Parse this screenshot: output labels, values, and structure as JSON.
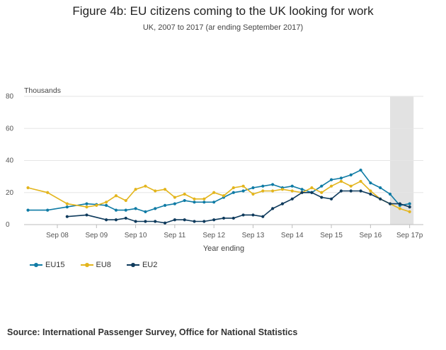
{
  "header": {
    "title": "Figure 4b: EU citizens coming to the UK looking for work",
    "subtitle": "UK, 2007 to 2017 (ar ending September 2017)"
  },
  "footer": {
    "source": "Source: International Passenger Survey, Office for National Statistics"
  },
  "legend": {
    "items": [
      {
        "label": "EU15",
        "color": "#0f7ba5"
      },
      {
        "label": "EU8",
        "color": "#e3b51d"
      },
      {
        "label": "EU2",
        "color": "#0e3a5c"
      }
    ]
  },
  "chart_data": {
    "type": "line",
    "title": "Figure 4b: EU citizens coming to the UK looking for work",
    "subtitle": "UK, 2007 to 2017 (ar ending September 2017)",
    "xlabel": "Year ending",
    "ylabel": "Thousands",
    "ylim": [
      0,
      80
    ],
    "yticks": [
      0,
      20,
      40,
      60,
      80
    ],
    "xlim": [
      2007.15,
      2017.35
    ],
    "xticks": [
      {
        "value": 2008.0,
        "label": "Sep 08"
      },
      {
        "value": 2009.0,
        "label": "Sep 09"
      },
      {
        "value": 2010.0,
        "label": "Sep 10"
      },
      {
        "value": 2011.0,
        "label": "Sep 11"
      },
      {
        "value": 2012.0,
        "label": "Sep 12"
      },
      {
        "value": 2013.0,
        "label": "Sep 13"
      },
      {
        "value": 2014.0,
        "label": "Sep 14"
      },
      {
        "value": 2015.0,
        "label": "Sep 15"
      },
      {
        "value": 2016.0,
        "label": "Sep 16"
      },
      {
        "value": 2017.0,
        "label": "Sep 17p"
      }
    ],
    "grid": true,
    "legend_position": "bottom-left",
    "shaded_region": {
      "from": 2016.5,
      "to": 2017.1,
      "color": "#e2e2e2"
    },
    "series": [
      {
        "name": "EU15",
        "color": "#0f7ba5",
        "x": [
          2007.25,
          2007.75,
          2008.25,
          2008.75,
          2009.0,
          2009.25,
          2009.5,
          2009.75,
          2010.0,
          2010.25,
          2010.5,
          2010.75,
          2011.0,
          2011.25,
          2011.5,
          2011.75,
          2012.0,
          2012.25,
          2012.5,
          2012.75,
          2013.0,
          2013.25,
          2013.5,
          2013.75,
          2014.0,
          2014.25,
          2014.5,
          2014.75,
          2015.0,
          2015.25,
          2015.5,
          2015.75,
          2016.0,
          2016.25,
          2016.5,
          2016.75,
          2017.0
        ],
        "y": [
          9,
          9,
          11,
          13,
          12.5,
          12,
          9,
          9,
          10,
          8,
          10,
          12,
          13,
          15,
          14,
          14,
          14,
          17,
          20,
          21,
          23,
          24,
          25,
          23,
          24,
          22,
          20,
          24,
          28,
          29,
          31,
          34,
          26,
          23,
          19,
          12,
          13
        ]
      },
      {
        "name": "EU8",
        "color": "#e3b51d",
        "x": [
          2007.25,
          2007.75,
          2008.25,
          2008.75,
          2009.0,
          2009.25,
          2009.5,
          2009.75,
          2010.0,
          2010.25,
          2010.5,
          2010.75,
          2011.0,
          2011.25,
          2011.5,
          2011.75,
          2012.0,
          2012.25,
          2012.5,
          2012.75,
          2013.0,
          2013.25,
          2013.5,
          2013.75,
          2014.0,
          2014.25,
          2014.5,
          2014.75,
          2015.0,
          2015.25,
          2015.5,
          2015.75,
          2016.0,
          2016.25,
          2016.5,
          2016.75,
          2017.0
        ],
        "y": [
          23,
          20,
          13,
          11,
          12,
          14,
          18,
          15,
          22,
          24,
          21,
          22,
          17,
          19,
          16,
          16,
          20,
          18,
          23,
          24,
          19,
          21,
          21,
          22,
          21,
          20,
          23,
          20,
          24,
          27,
          24,
          27,
          21,
          16,
          13,
          10,
          8
        ]
      },
      {
        "name": "EU2",
        "color": "#0e3a5c",
        "x": [
          2008.25,
          2008.75,
          2009.25,
          2009.5,
          2009.75,
          2010.0,
          2010.25,
          2010.5,
          2010.75,
          2011.0,
          2011.25,
          2011.5,
          2011.75,
          2012.0,
          2012.25,
          2012.5,
          2012.75,
          2013.0,
          2013.25,
          2013.5,
          2013.75,
          2014.0,
          2014.25,
          2014.5,
          2014.75,
          2015.0,
          2015.25,
          2015.5,
          2015.75,
          2016.0,
          2016.25,
          2016.5,
          2016.75,
          2017.0
        ],
        "y": [
          5,
          6,
          3,
          3,
          4,
          2,
          2,
          2,
          1,
          3,
          3,
          2,
          2,
          3,
          4,
          4,
          6,
          6,
          5,
          10,
          13,
          16,
          20,
          20,
          17,
          16,
          21,
          21,
          21,
          19,
          16,
          13,
          13,
          11
        ]
      }
    ]
  }
}
